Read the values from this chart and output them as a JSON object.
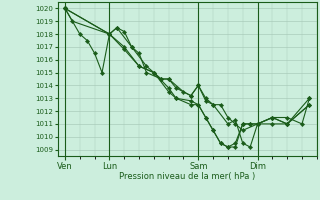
{
  "xlabel": "Pression niveau de la mer( hPa )",
  "bg_color": "#cceedd",
  "grid_color": "#aaccbb",
  "line_color": "#1a5c1a",
  "marker_color": "#1a5c1a",
  "ylim": [
    1008.5,
    1020.5
  ],
  "yticks": [
    1009,
    1010,
    1011,
    1012,
    1013,
    1014,
    1015,
    1016,
    1017,
    1018,
    1019,
    1020
  ],
  "xtick_labels": [
    "Ven",
    "Lun",
    "Sam",
    "Dim"
  ],
  "xtick_positions": [
    0,
    24,
    72,
    104
  ],
  "xlim": [
    -4,
    136
  ],
  "vline_positions": [
    0,
    24,
    72,
    104
  ],
  "series": [
    [
      0,
      1020.0,
      4,
      1019.0,
      8,
      1018.2,
      12,
      1018.0,
      16,
      1017.5,
      20,
      1016.5,
      24,
      1018.0,
      28,
      1018.5,
      32,
      1018.2,
      36,
      1017.0,
      40,
      1016.5,
      44,
      1015.5,
      48,
      1015.0,
      52,
      1014.5,
      56,
      1014.5,
      60,
      1013.8,
      64,
      1013.0,
      68,
      1013.2,
      72,
      1014.0,
      76,
      1013.0,
      80,
      1012.5,
      84,
      1012.5,
      88,
      1011.5,
      92,
      1011.0,
      96,
      1010.5,
      100,
      1011.0,
      104,
      1011.0,
      108,
      1011.5,
      112,
      1011.0,
      116,
      1012.0,
      120,
      1011.5,
      124,
      1011.0,
      128,
      1011.0,
      132,
      1013.0
    ]
  ],
  "series4": [
    {
      "x": [
        0,
        8,
        12,
        16,
        20,
        24,
        28,
        36,
        44,
        52,
        56,
        60,
        68,
        72,
        76,
        80,
        84,
        88,
        92,
        96,
        104,
        112,
        120,
        128,
        132
      ],
      "y": [
        1020,
        1018,
        1017.5,
        1016.5,
        1015.0,
        1018.0,
        1018.5,
        1017.0,
        1015.5,
        1014.5,
        1014.5,
        1013.8,
        1013.2,
        1014.0,
        1013.0,
        1012.5,
        1012.5,
        1011.5,
        1011.0,
        1010.5,
        1011.0,
        1011.5,
        1011.5,
        1011.0,
        1013.0
      ]
    },
    {
      "x": [
        0,
        4,
        24,
        28,
        32,
        36,
        40,
        44,
        52,
        56,
        64,
        68,
        72,
        76,
        80,
        88,
        92,
        96,
        100,
        104,
        112,
        120,
        132
      ],
      "y": [
        1020,
        1019,
        1018,
        1018.5,
        1018.2,
        1017.0,
        1016.5,
        1015.0,
        1014.5,
        1014.5,
        1013.5,
        1013.2,
        1014.0,
        1012.8,
        1012.5,
        1011.0,
        1011.3,
        1009.5,
        1009.2,
        1011.0,
        1011.0,
        1011.0,
        1013.0
      ]
    },
    {
      "x": [
        0,
        24,
        32,
        40,
        48,
        56,
        60,
        68,
        72,
        76,
        80,
        84,
        88,
        92,
        96,
        100,
        104,
        112,
        120,
        132
      ],
      "y": [
        1020,
        1018.0,
        1017.0,
        1015.5,
        1015.0,
        1013.5,
        1013.0,
        1012.8,
        1012.5,
        1011.5,
        1010.5,
        1009.5,
        1009.2,
        1009.2,
        1011.0,
        1011.0,
        1011.0,
        1011.5,
        1011.0,
        1012.5
      ]
    },
    {
      "x": [
        0,
        24,
        32,
        40,
        48,
        56,
        60,
        68,
        72,
        76,
        80,
        84,
        88,
        92,
        96,
        100,
        104,
        112,
        120,
        132
      ],
      "y": [
        1020,
        1018.0,
        1016.8,
        1015.5,
        1015.0,
        1013.8,
        1013.0,
        1012.5,
        1012.5,
        1011.5,
        1010.5,
        1009.5,
        1009.2,
        1009.5,
        1011.0,
        1011.0,
        1011.0,
        1011.5,
        1011.0,
        1012.5
      ]
    }
  ]
}
